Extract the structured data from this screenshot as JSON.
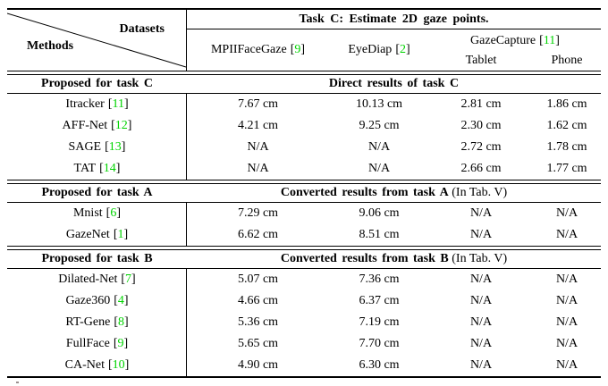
{
  "page": {
    "background": "#ffffff",
    "text_color": "#000000",
    "citation_color": "#00d400"
  },
  "table": {
    "corner": {
      "datasets_label": "Datasets",
      "methods_label": "Methods"
    },
    "task_header": "Task C: Estimate 2D gaze points.",
    "columns": [
      {
        "name": "MPIIFaceGaze",
        "cite": "9"
      },
      {
        "name": "EyeDiap",
        "cite": "2"
      },
      {
        "name": "GazeCapture",
        "cite": "11",
        "subcolumns": [
          "Tablet",
          "Phone"
        ]
      }
    ],
    "sections": [
      {
        "left_header": "Proposed for task C",
        "right_header_bold": "Direct results of task C",
        "right_header_note": "",
        "rows": [
          {
            "method": "Itracker",
            "cite": "11",
            "values": [
              "7.67 cm",
              "10.13 cm",
              "2.81 cm",
              "1.86 cm"
            ]
          },
          {
            "method": "AFF-Net",
            "cite": "12",
            "values": [
              "4.21 cm",
              "9.25 cm",
              "2.30 cm",
              "1.62 cm"
            ]
          },
          {
            "method": "SAGE",
            "cite": "13",
            "values": [
              "N/A",
              "N/A",
              "2.72 cm",
              "1.78 cm"
            ]
          },
          {
            "method": "TAT",
            "cite": "14",
            "values": [
              "N/A",
              "N/A",
              "2.66 cm",
              "1.77 cm"
            ]
          }
        ]
      },
      {
        "left_header": "Proposed for task A",
        "right_header_bold": "Converted results from task A",
        "right_header_note": " (In Tab. V)",
        "rows": [
          {
            "method": "Mnist",
            "cite": "6",
            "values": [
              "7.29 cm",
              "9.06 cm",
              "N/A",
              "N/A"
            ]
          },
          {
            "method": "GazeNet",
            "cite": "1",
            "values": [
              "6.62 cm",
              "8.51 cm",
              "N/A",
              "N/A"
            ]
          }
        ]
      },
      {
        "left_header": "Proposed for task B",
        "right_header_bold": "Converted results from task B",
        "right_header_note": " (In Tab. V)",
        "rows": [
          {
            "method": "Dilated-Net",
            "cite": "7",
            "values": [
              "5.07 cm",
              "7.36 cm",
              "N/A",
              "N/A"
            ]
          },
          {
            "method": "Gaze360",
            "cite": "4",
            "values": [
              "4.66 cm",
              "6.37 cm",
              "N/A",
              "N/A"
            ]
          },
          {
            "method": "RT-Gene",
            "cite": "8",
            "values": [
              "5.36 cm",
              "7.19 cm",
              "N/A",
              "N/A"
            ]
          },
          {
            "method": "FullFace",
            "cite": "9",
            "values": [
              "5.65 cm",
              "7.70 cm",
              "N/A",
              "N/A"
            ]
          },
          {
            "method": "CA-Net",
            "cite": "10",
            "values": [
              "4.90 cm",
              "6.30 cm",
              "N/A",
              "N/A"
            ]
          }
        ]
      }
    ]
  }
}
